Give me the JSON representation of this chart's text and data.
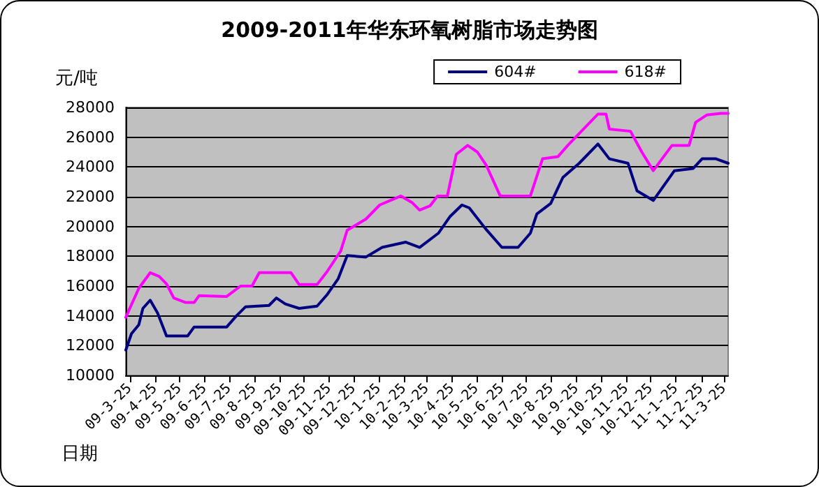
{
  "chart_data": {
    "type": "line",
    "title": "2009-2011年华东环氧树脂市场走势图",
    "ylabel": "元/吨",
    "xlabel": "日期",
    "xlim": [
      "2009-03-20",
      "2011-03-30"
    ],
    "xticks": [
      {
        "value": "2009-03-25",
        "label": "09-3-25"
      },
      {
        "value": "2009-04-25",
        "label": "09-4-25"
      },
      {
        "value": "2009-05-25",
        "label": "09-5-25"
      },
      {
        "value": "2009-06-25",
        "label": "09-6-25"
      },
      {
        "value": "2009-07-25",
        "label": "09-7-25"
      },
      {
        "value": "2009-08-25",
        "label": "09-8-25"
      },
      {
        "value": "2009-09-25",
        "label": "09-9-25"
      },
      {
        "value": "2009-10-25",
        "label": "09-10-25"
      },
      {
        "value": "2009-11-25",
        "label": "09-11-25"
      },
      {
        "value": "2009-12-25",
        "label": "09-12-25"
      },
      {
        "value": "2010-01-25",
        "label": "10-1-25"
      },
      {
        "value": "2010-02-25",
        "label": "10-2-25"
      },
      {
        "value": "2010-03-25",
        "label": "10-3-25"
      },
      {
        "value": "2010-04-25",
        "label": "10-4-25"
      },
      {
        "value": "2010-05-25",
        "label": "10-5-25"
      },
      {
        "value": "2010-06-25",
        "label": "10-6-25"
      },
      {
        "value": "2010-07-25",
        "label": "10-7-25"
      },
      {
        "value": "2010-08-25",
        "label": "10-8-25"
      },
      {
        "value": "2010-09-25",
        "label": "10-9-25"
      },
      {
        "value": "2010-10-25",
        "label": "10-10-25"
      },
      {
        "value": "2010-11-25",
        "label": "10-11-25"
      },
      {
        "value": "2010-12-25",
        "label": "10-12-25"
      },
      {
        "value": "2011-01-25",
        "label": "11-1-25"
      },
      {
        "value": "2011-02-25",
        "label": "11-2-25"
      },
      {
        "value": "2011-03-25",
        "label": "11-3-25"
      }
    ],
    "ylim": [
      10000,
      28000
    ],
    "yticks": [
      10000,
      12000,
      14000,
      16000,
      18000,
      20000,
      22000,
      24000,
      26000,
      28000
    ],
    "grid": "y",
    "legend": "top right",
    "marker": "none",
    "line_style": "solid",
    "series": [
      {
        "name": "604#",
        "color": "#000080",
        "x": [
          "2009-03-20",
          "2009-03-27",
          "2009-04-05",
          "2009-04-10",
          "2009-04-19",
          "2009-04-28",
          "2009-05-09",
          "2009-06-04",
          "2009-06-12",
          "2009-07-22",
          "2009-08-03",
          "2009-08-14",
          "2009-09-12",
          "2009-09-21",
          "2009-10-02",
          "2009-10-19",
          "2009-11-10",
          "2009-11-22",
          "2009-12-06",
          "2009-12-17",
          "2010-01-09",
          "2010-01-29",
          "2010-02-27",
          "2010-03-16",
          "2010-04-08",
          "2010-04-22",
          "2010-05-07",
          "2010-05-16",
          "2010-06-05",
          "2010-06-25",
          "2010-07-15",
          "2010-07-30",
          "2010-08-07",
          "2010-08-24",
          "2010-09-08",
          "2010-09-28",
          "2010-10-21",
          "2010-11-04",
          "2010-11-27",
          "2010-12-08",
          "2010-12-28",
          "2011-01-23",
          "2011-02-15",
          "2011-02-26",
          "2011-03-15",
          "2011-03-30"
        ],
        "values": [
          11700,
          12800,
          13400,
          14500,
          15050,
          14200,
          12650,
          12650,
          13250,
          13250,
          14000,
          14600,
          14700,
          15200,
          14800,
          14500,
          14650,
          15400,
          16500,
          18050,
          17950,
          18600,
          18950,
          18600,
          19550,
          20650,
          21450,
          21250,
          19850,
          18600,
          18600,
          19550,
          20850,
          21550,
          23300,
          24250,
          25550,
          24550,
          24250,
          22400,
          21750,
          23750,
          23900,
          24550,
          24550,
          24250
        ]
      },
      {
        "name": "618#",
        "color": "#ff00ff",
        "x": [
          "2009-03-20",
          "2009-04-05",
          "2009-04-19",
          "2009-04-30",
          "2009-05-09",
          "2009-05-18",
          "2009-06-01",
          "2009-06-12",
          "2009-06-18",
          "2009-07-22",
          "2009-08-08",
          "2009-08-22",
          "2009-08-31",
          "2009-10-09",
          "2009-10-19",
          "2009-11-10",
          "2009-11-22",
          "2009-12-09",
          "2009-12-17",
          "2010-01-09",
          "2010-01-26",
          "2010-02-21",
          "2010-03-07",
          "2010-03-16",
          "2010-03-29",
          "2010-04-07",
          "2010-04-19",
          "2010-04-30",
          "2010-05-14",
          "2010-05-26",
          "2010-06-06",
          "2010-06-23",
          "2010-07-30",
          "2010-08-14",
          "2010-09-02",
          "2010-09-14",
          "2010-09-28",
          "2010-10-21",
          "2010-10-31",
          "2010-11-04",
          "2010-11-30",
          "2010-12-14",
          "2010-12-28",
          "2011-01-20",
          "2011-02-10",
          "2011-02-18",
          "2011-03-04",
          "2011-03-21",
          "2011-03-30"
        ],
        "values": [
          13900,
          15850,
          16900,
          16650,
          16150,
          15200,
          14900,
          14900,
          15350,
          15300,
          16000,
          16000,
          16900,
          16900,
          16100,
          16100,
          16950,
          18350,
          19750,
          20500,
          21450,
          22050,
          21600,
          21100,
          21400,
          22050,
          22050,
          24850,
          25450,
          25000,
          24100,
          22050,
          22050,
          24550,
          24700,
          25450,
          26250,
          27550,
          27550,
          26550,
          26400,
          25000,
          23750,
          25450,
          25450,
          27000,
          27500,
          27600,
          27600
        ]
      }
    ]
  }
}
